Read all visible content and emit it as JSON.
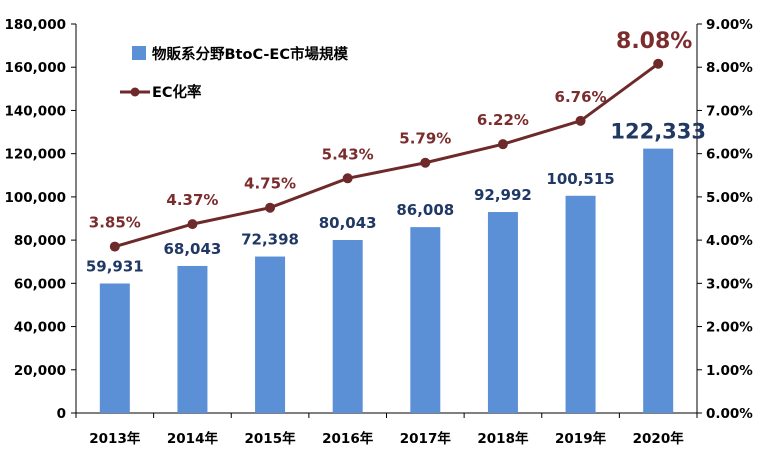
{
  "chart_data": {
    "type": "bar",
    "categories": [
      "2013年",
      "2014年",
      "2015年",
      "2016年",
      "2017年",
      "2018年",
      "2019年",
      "2020年"
    ],
    "series": [
      {
        "name": "物販系分野BtoC-EC市場規模",
        "type": "bar",
        "axis": "left",
        "values": [
          59931,
          68043,
          72398,
          80043,
          86008,
          92992,
          100515,
          122333
        ],
        "labels": [
          "59,931",
          "68,043",
          "72,398",
          "80,043",
          "86,008",
          "92,992",
          "100,515",
          "122,333"
        ]
      },
      {
        "name": "EC化率",
        "type": "line",
        "axis": "right",
        "values": [
          3.85,
          4.37,
          4.75,
          5.43,
          5.79,
          6.22,
          6.76,
          8.08
        ],
        "labels": [
          "3.85%",
          "4.37%",
          "4.75%",
          "5.43%",
          "5.79%",
          "6.22%",
          "6.76%",
          "8.08%"
        ]
      }
    ],
    "ylim": [
      0,
      180000
    ],
    "y2lim": [
      0,
      9
    ],
    "y_ticks": [
      "0",
      "20,000",
      "40,000",
      "60,000",
      "80,000",
      "100,000",
      "120,000",
      "140,000",
      "160,000",
      "180,000"
    ],
    "y2_ticks": [
      "0.00%",
      "1.00%",
      "2.00%",
      "3.00%",
      "4.00%",
      "5.00%",
      "6.00%",
      "7.00%",
      "8.00%",
      "9.00%"
    ],
    "grid": false,
    "legend_position": "top-left",
    "colors": {
      "bar": "#5b8fd6",
      "line": "#6e2a2a"
    }
  }
}
